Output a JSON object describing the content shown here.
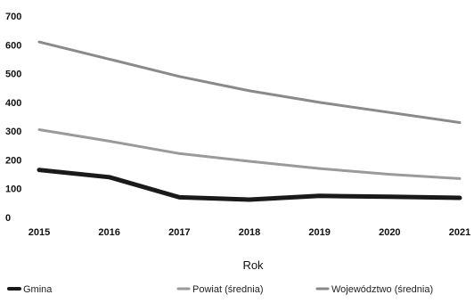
{
  "chart_data": {
    "type": "line",
    "title": "",
    "xlabel": "Rok",
    "ylabel": "",
    "x": [
      2015,
      2016,
      2017,
      2018,
      2019,
      2020,
      2021
    ],
    "x_tick_labels": [
      "2015",
      "2016",
      "2017",
      "2018",
      "2019",
      "2020",
      "2021"
    ],
    "ylim": [
      0,
      700
    ],
    "y_ticks": [
      0,
      100,
      200,
      300,
      400,
      500,
      600,
      700
    ],
    "y_tick_labels": [
      "0",
      "100",
      "200",
      "300",
      "400",
      "500",
      "600",
      "700"
    ],
    "grid": false,
    "legend_position": "bottom",
    "series": [
      {
        "name": "Gmina",
        "color": "#1a1a1a",
        "values": [
          165,
          140,
          70,
          62,
          75,
          72,
          68
        ]
      },
      {
        "name": "Powiat (średnia)",
        "color": "#9a9a9a",
        "values": [
          305,
          265,
          222,
          195,
          170,
          150,
          135
        ]
      },
      {
        "name": "Województwo (średnia)",
        "color": "#8a8a8a",
        "values": [
          610,
          550,
          490,
          440,
          400,
          365,
          330
        ]
      }
    ]
  }
}
